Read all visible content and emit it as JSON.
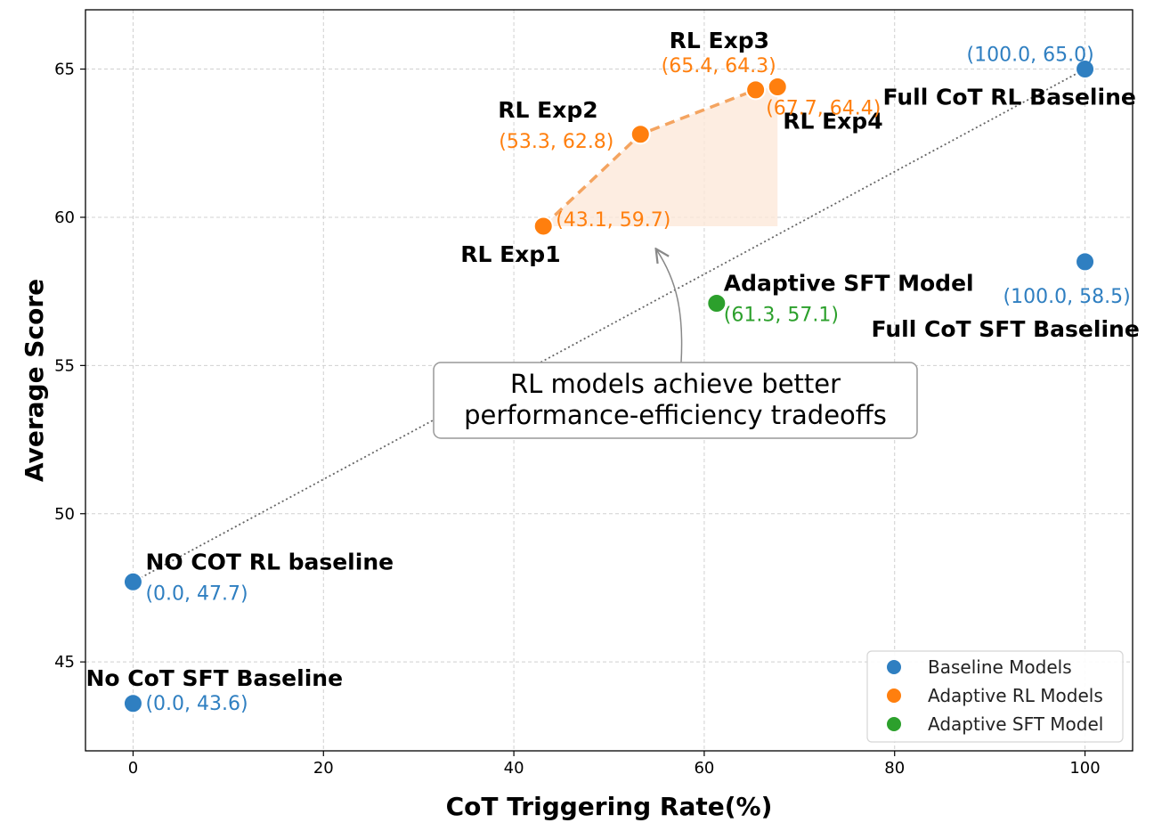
{
  "chart_data": {
    "type": "scatter",
    "xlabel": "CoT Triggering Rate(%)",
    "ylabel": "Average Score",
    "xlim": [
      -5,
      105
    ],
    "ylim": [
      42,
      67
    ],
    "xticks": [
      0,
      20,
      40,
      60,
      80,
      100
    ],
    "yticks": [
      45,
      50,
      55,
      60,
      65
    ],
    "grid": true,
    "legend_position": "bottom-right",
    "colors": {
      "baseline": "#2f7fc1",
      "rl": "#ff7f0e",
      "sft": "#2ca02c",
      "frontier_fill": "#fde9d9",
      "trend": "#666666"
    },
    "series": [
      {
        "name": "Baseline Models",
        "key": "baseline",
        "points": [
          {
            "x": 100.0,
            "y": 65.0,
            "label": "Full CoT RL Baseline",
            "coord": "(100.0, 65.0)"
          },
          {
            "x": 100.0,
            "y": 58.5,
            "label": "Full CoT SFT Baseline",
            "coord": "(100.0, 58.5)"
          },
          {
            "x": 0.0,
            "y": 47.7,
            "label": "NO COT RL baseline",
            "coord": "(0.0, 47.7)"
          },
          {
            "x": 0.0,
            "y": 43.6,
            "label": "No CoT SFT Baseline",
            "coord": "(0.0, 43.6)"
          }
        ]
      },
      {
        "name": "Adaptive RL Models",
        "key": "rl",
        "points": [
          {
            "x": 43.1,
            "y": 59.7,
            "label": "RL Exp1",
            "coord": "(43.1, 59.7)"
          },
          {
            "x": 53.3,
            "y": 62.8,
            "label": "RL Exp2",
            "coord": "(53.3, 62.8)"
          },
          {
            "x": 65.4,
            "y": 64.3,
            "label": "RL Exp3",
            "coord": "(65.4, 64.3)"
          },
          {
            "x": 67.7,
            "y": 64.4,
            "label": "RL Exp4",
            "coord": "(67.7, 64.4)"
          }
        ]
      },
      {
        "name": "Adaptive SFT Model",
        "key": "sft",
        "points": [
          {
            "x": 61.3,
            "y": 57.1,
            "label": "Adaptive SFT Model",
            "coord": "(61.3, 57.1)"
          }
        ]
      }
    ],
    "trend_line": {
      "from": {
        "x": 0.0,
        "y": 47.7
      },
      "to": {
        "x": 100.0,
        "y": 65.0
      }
    },
    "annotation": {
      "lines": [
        "RL models achieve better",
        "performance-efficiency tradeoffs"
      ],
      "arrow_target": {
        "x": 55.0,
        "y": 58.9
      }
    }
  }
}
